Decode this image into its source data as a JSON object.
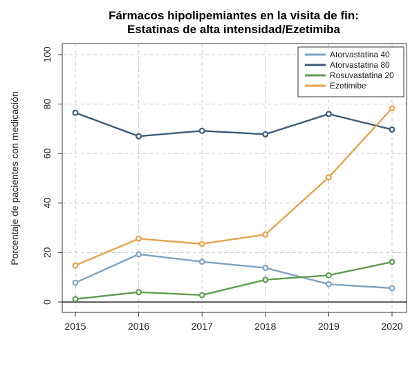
{
  "chart_data": {
    "type": "line",
    "title": [
      "Fármacos hipolipemiantes en la visita de fin:",
      "Estatinas  de alta intensidad/Ezetimiba"
    ],
    "xlabel": "",
    "ylabel": "Porcentaje de pacientes con medicación",
    "x": [
      2015,
      2016,
      2017,
      2018,
      2019,
      2020
    ],
    "ylim": [
      0,
      100
    ],
    "yticks": [
      0,
      20,
      40,
      60,
      80,
      100
    ],
    "grid": true,
    "legend": "top-right",
    "series": [
      {
        "name": "Atorvastatina 40",
        "color": "#7ba3c4",
        "values": [
          7.8,
          19.3,
          16.3,
          13.8,
          7.2,
          5.6
        ]
      },
      {
        "name": "Atorvastatina 80",
        "color": "#3d5a7a",
        "values": [
          76.5,
          67.0,
          69.2,
          67.8,
          76.0,
          69.7
        ]
      },
      {
        "name": "Rosuvastatina 20",
        "color": "#5c9e4e",
        "values": [
          1.2,
          4.0,
          2.8,
          9.0,
          10.8,
          16.2
        ]
      },
      {
        "name": "Ezetimibe",
        "color": "#e6a24d",
        "values": [
          14.8,
          25.6,
          23.5,
          27.3,
          50.4,
          78.3
        ]
      }
    ]
  }
}
